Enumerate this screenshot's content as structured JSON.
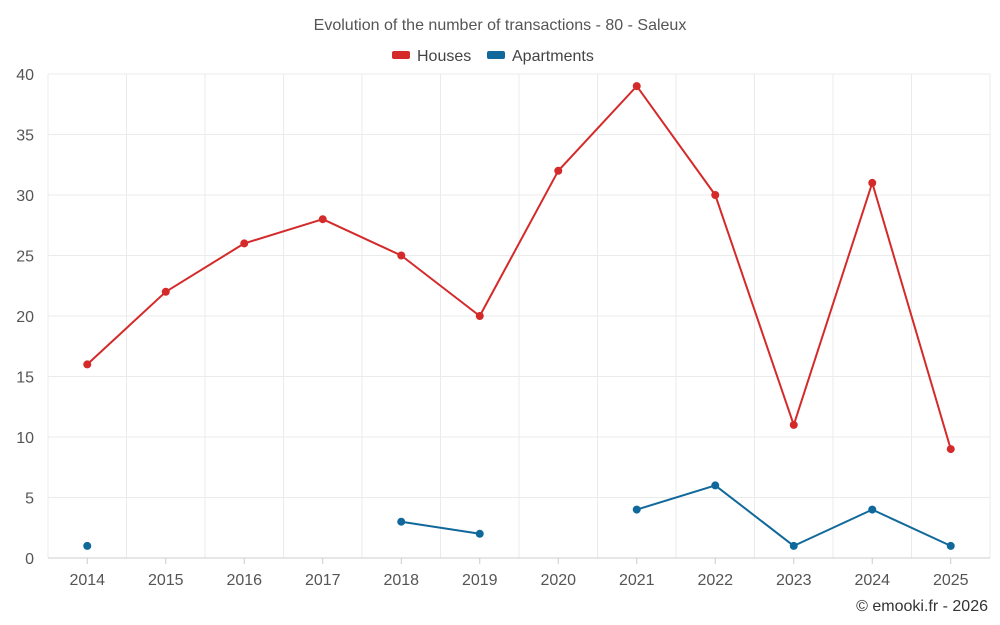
{
  "chart_data": {
    "type": "line",
    "title": "Evolution of the number of transactions - 80 - Saleux",
    "categories": [
      "2014",
      "2015",
      "2016",
      "2017",
      "2018",
      "2019",
      "2020",
      "2021",
      "2022",
      "2023",
      "2024",
      "2025"
    ],
    "series": [
      {
        "name": "Houses",
        "color": "#d42a2a",
        "values": [
          16,
          22,
          26,
          28,
          25,
          20,
          32,
          39,
          30,
          11,
          31,
          9
        ]
      },
      {
        "name": "Apartments",
        "color": "#10699a",
        "values": [
          1,
          null,
          null,
          null,
          3,
          2,
          null,
          4,
          6,
          1,
          4,
          1
        ]
      }
    ],
    "yticks": [
      0,
      5,
      10,
      15,
      20,
      25,
      30,
      35,
      40
    ],
    "ylim": [
      0,
      40
    ],
    "grid": true,
    "legend": "top-center",
    "credit": "© emooki.fr - 2026"
  }
}
